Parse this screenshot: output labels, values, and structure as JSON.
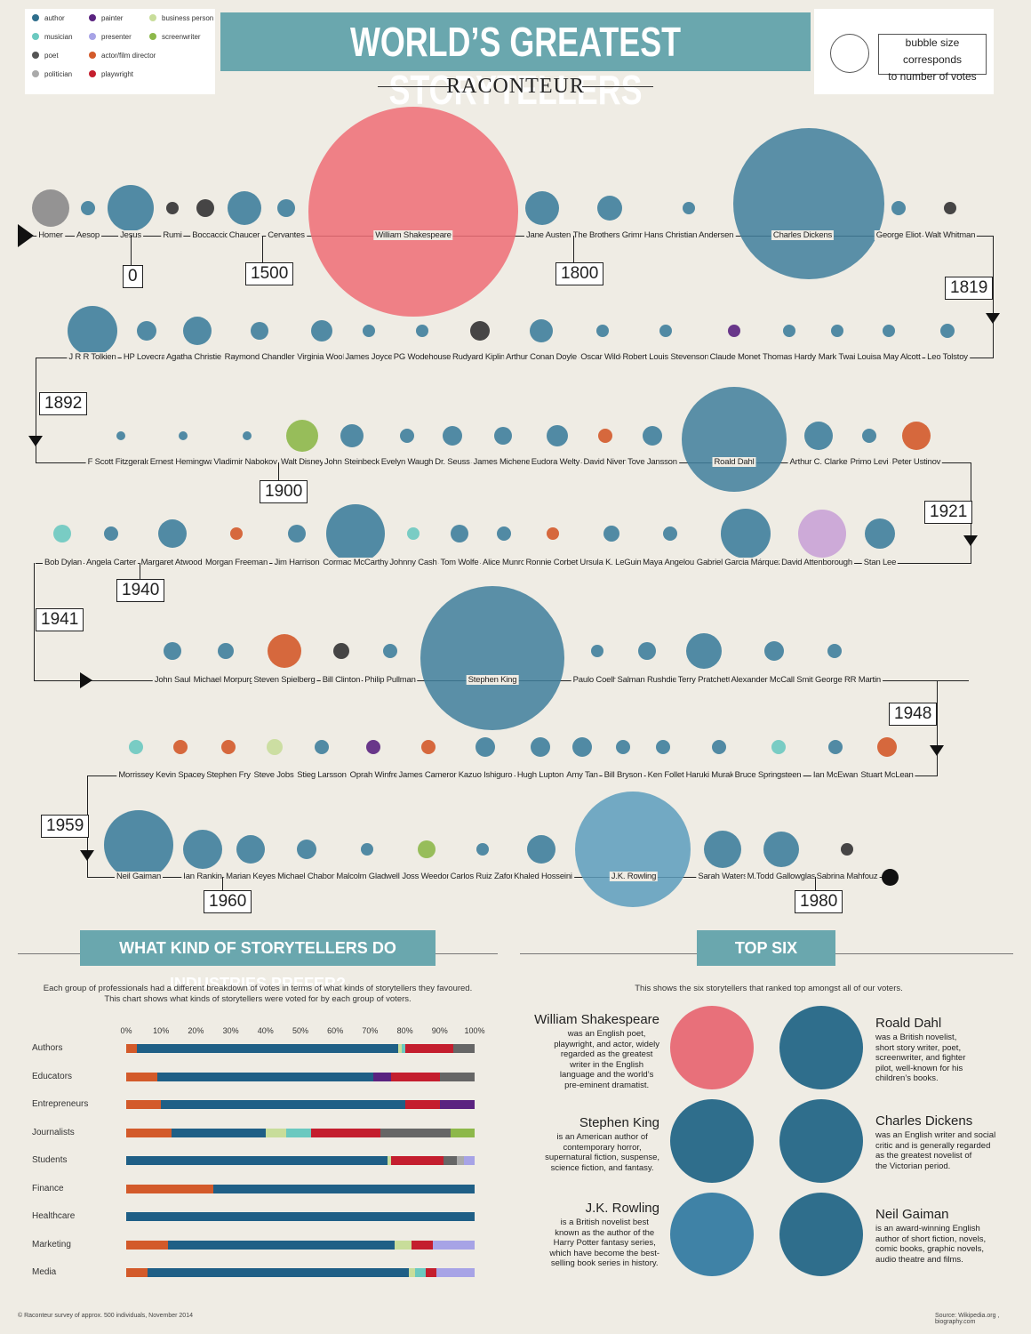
{
  "legend": {
    "items": [
      {
        "label": "author",
        "color": "#2f6e8c"
      },
      {
        "label": "musician",
        "color": "#6bc9c0"
      },
      {
        "label": "poet",
        "color": "#555555"
      },
      {
        "label": "politician",
        "color": "#aaaaaa"
      },
      {
        "label": "painter",
        "color": "#5a2380"
      },
      {
        "label": "presenter",
        "color": "#a7a3e6"
      },
      {
        "label": "actor/film director",
        "color": "#d35a2a"
      },
      {
        "label": "playwright",
        "color": "#c41e2e"
      },
      {
        "label": "business person",
        "color": "#c8dd9a"
      },
      {
        "label": "screenwriter",
        "color": "#8db84a"
      }
    ]
  },
  "header": {
    "title": "WORLD’S GREATEST STORYTELLERS",
    "brand": "RACONTEUR"
  },
  "size_note": {
    "text_line1": "bubble size corresponds",
    "text_line2": "to number of votes"
  },
  "timeline": {
    "row1": [
      "Homer",
      "Aesop",
      "Jesus",
      "Rumi",
      "Boccaccio",
      "Chaucer",
      "Cervantes",
      "William Shakespeare",
      "Jane Austen",
      "The Brothers Grimm",
      "Hans Christian Andersen",
      "Charles Dickens",
      "George Eliot",
      "Walt Whitman"
    ],
    "row2": [
      "J R R Tolkien",
      "HP Lovecraft",
      "Agatha Christie",
      "Raymond Chandler",
      "Virginia Woolf",
      "James Joyce",
      "PG Wodehouse",
      "Rudyard Kipling",
      "Arthur Conan Doyle",
      "Oscar Wilde",
      "Robert Louis Stevenson",
      "Claude Monet",
      "Thomas Hardy",
      "Mark Twain",
      "Louisa May Alcott",
      "Leo Tolstoy"
    ],
    "row3": [
      "F Scott Fitzgerald",
      "Ernest Hemingway",
      "Vladimir Nabokov",
      "Walt Disney",
      "John Steinbeck",
      "Evelyn Waugh",
      "Dr. Seuss",
      "James Michener",
      "Eudora Welty",
      "David Niven",
      "Tove Jansson",
      "Roald Dahl",
      "Arthur C. Clarke",
      "Primo Levi",
      "Peter Ustinov"
    ],
    "row4": [
      "Bob Dylan",
      "Angela Carter",
      "Margaret Atwood",
      "Morgan Freeman",
      "Jim Harrison",
      "Cormac McCarthy",
      "Johnny Cash",
      "Tom Wolfe",
      "Alice Munro",
      "Ronnie Corbett",
      "Ursula K. LeGuin",
      "Maya Angelou",
      "Gabriel Garcia Márquez",
      "David Attenborough",
      "Stan Lee"
    ],
    "row5": [
      "John Saul",
      "Michael Morpurgo",
      "Steven Spielberg",
      "Bill Clinton",
      "Philip Pullman",
      "Stephen King",
      "Paulo Coelho",
      "Salman Rushdie",
      "Terry Pratchett",
      "Alexander McCall Smith",
      "George RR Martin"
    ],
    "row6": [
      "Morrissey",
      "Kevin Spacey",
      "Stephen Fry",
      "Steve Jobs",
      "Stieg Larsson",
      "Oprah Winfrey",
      "James Cameron",
      "Kazuo Ishiguro",
      "Hugh Lupton",
      "Amy Tan",
      "Bill Bryson",
      "Ken Follet",
      "Haruki Murakami",
      "Bruce Springsteen",
      "Ian McEwan",
      "Stuart McLean"
    ],
    "row7": [
      "Neil Gaiman",
      "Ian Rankin",
      "Marian Keyes",
      "Michael Chabon",
      "Malcolm Gladwell",
      "Joss Weedon",
      "Carlos Ruiz Zafon",
      "Khaled Hosseini",
      "J.K. Rowling",
      "Sarah Waters",
      "M.Todd Gallowglas",
      "Sabrina Mahfouz"
    ],
    "years": [
      "0",
      "1500",
      "1800",
      "1819",
      "1892",
      "1900",
      "1921",
      "1940",
      "1941",
      "1948",
      "1959",
      "1960",
      "1980"
    ]
  },
  "industries": {
    "heading": "WHAT KIND OF STORYTELLERS DO INDUSTRIES PREFER?",
    "desc_line1": "Each group of professionals had a different breakdown of votes in terms of what kinds of storytellers they favoured.",
    "desc_line2": "This chart shows what kinds of storytellers were voted for by each group of voters."
  },
  "chart_data": {
    "type": "bar",
    "orientation": "horizontal-stacked-100",
    "title": "WHAT KIND OF STORYTELLERS DO INDUSTRIES PREFER?",
    "xlim": [
      0,
      100
    ],
    "ticks": [
      "0%",
      "10%",
      "20%",
      "30%",
      "40%",
      "50%",
      "60%",
      "70%",
      "80%",
      "90%",
      "100%"
    ],
    "categories": [
      "Authors",
      "Educators",
      "Entrepreneurs",
      "Journalists",
      "Students",
      "Finance",
      "Healthcare",
      "Marketing",
      "Media"
    ],
    "series_order": [
      "actor/film director",
      "author",
      "business person",
      "musician",
      "painter",
      "playwright",
      "poet",
      "politician",
      "presenter",
      "screenwriter"
    ],
    "colors": {
      "actor/film director": "#d35a2a",
      "author": "#1f5f86",
      "business person": "#c8dd9a",
      "musician": "#6bc9c0",
      "painter": "#5a2380",
      "playwright": "#c41e2e",
      "poet": "#666666",
      "politician": "#aaaaaa",
      "presenter": "#a7a3e6",
      "screenwriter": "#8db84a"
    },
    "rows": [
      {
        "category": "Authors",
        "segments": [
          [
            "actor/film director",
            3
          ],
          [
            "author",
            75
          ],
          [
            "business person",
            1
          ],
          [
            "musician",
            1
          ],
          [
            "playwright",
            14
          ],
          [
            "poet",
            6
          ]
        ]
      },
      {
        "category": "Educators",
        "segments": [
          [
            "actor/film director",
            9
          ],
          [
            "author",
            62
          ],
          [
            "painter",
            5
          ],
          [
            "playwright",
            14
          ],
          [
            "poet",
            10
          ]
        ]
      },
      {
        "category": "Entrepreneurs",
        "segments": [
          [
            "actor/film director",
            10
          ],
          [
            "author",
            70
          ],
          [
            "playwright",
            10
          ],
          [
            "painter",
            10
          ]
        ]
      },
      {
        "category": "Journalists",
        "segments": [
          [
            "actor/film director",
            13
          ],
          [
            "author",
            27
          ],
          [
            "business person",
            6
          ],
          [
            "musician",
            7
          ],
          [
            "playwright",
            20
          ],
          [
            "poet",
            20
          ],
          [
            "screenwriter",
            7
          ]
        ]
      },
      {
        "category": "Students",
        "segments": [
          [
            "author",
            75
          ],
          [
            "business person",
            1
          ],
          [
            "playwright",
            15
          ],
          [
            "poet",
            4
          ],
          [
            "politician",
            2
          ],
          [
            "presenter",
            3
          ]
        ]
      },
      {
        "category": "Finance",
        "segments": [
          [
            "actor/film director",
            25
          ],
          [
            "author",
            75
          ]
        ]
      },
      {
        "category": "Healthcare",
        "segments": [
          [
            "author",
            100
          ]
        ]
      },
      {
        "category": "Marketing",
        "segments": [
          [
            "actor/film director",
            12
          ],
          [
            "author",
            65
          ],
          [
            "business person",
            5
          ],
          [
            "playwright",
            6
          ],
          [
            "presenter",
            12
          ]
        ]
      },
      {
        "category": "Media",
        "segments": [
          [
            "actor/film director",
            6
          ],
          [
            "author",
            75
          ],
          [
            "business person",
            2
          ],
          [
            "musician",
            3
          ],
          [
            "playwright",
            3
          ],
          [
            "presenter",
            11
          ]
        ]
      }
    ]
  },
  "top_six": {
    "heading": "TOP SIX",
    "desc": "This shows the six storytellers that ranked top amongst all of our voters.",
    "items": [
      {
        "name": "William Shakespeare",
        "lines": [
          "was an English poet,",
          "playwright, and actor, widely",
          "regarded as the greatest",
          "writer in the English",
          "language and the world’s",
          "pre-eminent dramatist."
        ],
        "color": "#e8707a"
      },
      {
        "name": "Roald Dahl",
        "lines": [
          "was a British novelist,",
          "short story writer, poet,",
          "screenwriter, and fighter",
          "pilot, well-known for his",
          "children’s books."
        ],
        "color": "#2f6e8c"
      },
      {
        "name": "Stephen King",
        "lines": [
          "is an American author of",
          "contemporary horror,",
          "supernatural fiction, suspense,",
          "science fiction, and fantasy."
        ],
        "color": "#2f6e8c"
      },
      {
        "name": "Charles Dickens",
        "lines": [
          "was an English writer and social",
          "critic and is generally regarded",
          "as the greatest novelist of",
          "the Victorian period."
        ],
        "color": "#2f6e8c"
      },
      {
        "name": "J.K. Rowling",
        "lines": [
          "is a British novelist best",
          "known as the author of the",
          "Harry Potter fantasy series,",
          "which have become the best-",
          "selling book series in history."
        ],
        "color": "#3f82a6"
      },
      {
        "name": "Neil Gaiman",
        "lines": [
          "is an award-winning English",
          "author of short fiction, novels,",
          "comic books, graphic novels,",
          "audio theatre and films."
        ],
        "color": "#2f6e8c"
      }
    ]
  },
  "footer": {
    "left": "© Raconteur survey of approx. 500 individuals, November 2014",
    "right": "Source: Wikipedia.org , biography.com"
  }
}
